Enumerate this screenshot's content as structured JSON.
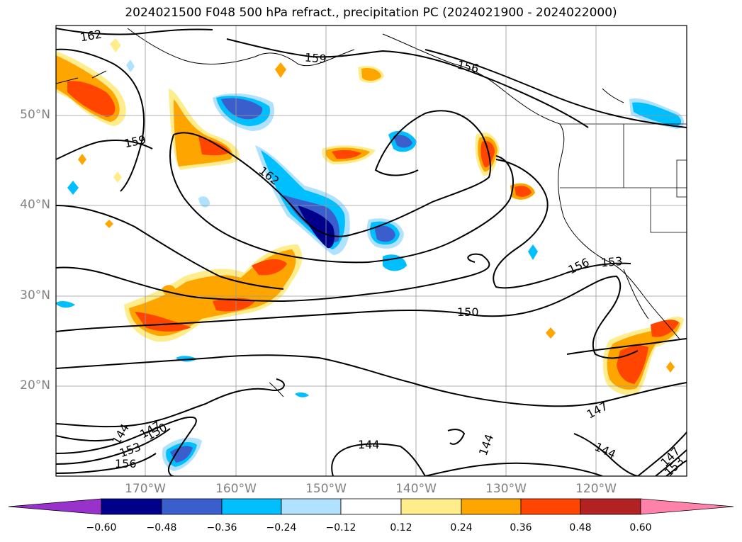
{
  "title": "2024021500 F048 500 hPa refract., precipitation PC (2024021900 - 2024022000)",
  "map": {
    "lat_labels": [
      "50°N",
      "40°N",
      "30°N",
      "20°N"
    ],
    "lon_labels": [
      "170°W",
      "160°W",
      "150°W",
      "140°W",
      "130°W",
      "120°W"
    ],
    "contour_labels": [
      "162",
      "159",
      "156",
      "159",
      "162",
      "156",
      "153",
      "150",
      "147",
      "144",
      "144",
      "144",
      "147",
      "150",
      "153",
      "156",
      "144",
      "147",
      "153"
    ]
  },
  "colorbar": {
    "ticks": [
      "−0.60",
      "−0.48",
      "−0.36",
      "−0.24",
      "−0.12",
      "0.12",
      "0.24",
      "0.36",
      "0.48",
      "0.60"
    ],
    "colors": [
      "#9932CC",
      "#00008B",
      "#3A5FCD",
      "#00BFFF",
      "#B0E2FF",
      "#FFFFFF",
      "#FFEC8B",
      "#FFA500",
      "#FF4500",
      "#B22222",
      "#FF82AB"
    ]
  }
}
